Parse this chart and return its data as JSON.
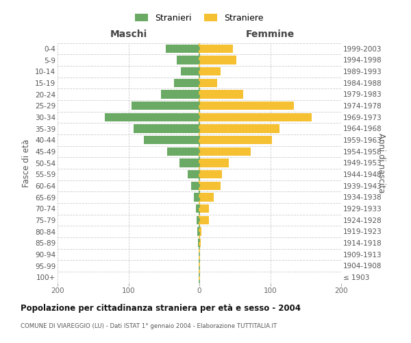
{
  "age_groups": [
    "100+",
    "95-99",
    "90-94",
    "85-89",
    "80-84",
    "75-79",
    "70-74",
    "65-69",
    "60-64",
    "55-59",
    "50-54",
    "45-49",
    "40-44",
    "35-39",
    "30-34",
    "25-29",
    "20-24",
    "15-19",
    "10-14",
    "5-9",
    "0-4"
  ],
  "birth_years": [
    "≤ 1903",
    "1904-1908",
    "1909-1913",
    "1914-1918",
    "1919-1923",
    "1924-1928",
    "1929-1933",
    "1934-1938",
    "1939-1943",
    "1944-1948",
    "1949-1953",
    "1954-1958",
    "1959-1963",
    "1964-1968",
    "1969-1973",
    "1974-1978",
    "1979-1983",
    "1984-1988",
    "1989-1993",
    "1994-1998",
    "1999-2003"
  ],
  "maschi": [
    0,
    0,
    0,
    2,
    3,
    4,
    5,
    8,
    12,
    16,
    28,
    45,
    78,
    93,
    133,
    96,
    54,
    36,
    26,
    32,
    47
  ],
  "femmine": [
    0,
    0,
    0,
    2,
    3,
    14,
    14,
    20,
    30,
    32,
    42,
    72,
    102,
    113,
    158,
    133,
    62,
    25,
    30,
    52,
    47
  ],
  "maschi_color": "#6aaa64",
  "femmine_color": "#f5c031",
  "grid_color": "#cccccc",
  "title": "Popolazione per cittadinanza straniera per età e sesso - 2004",
  "subtitle": "COMUNE DI VIAREGGIO (LU) - Dati ISTAT 1° gennaio 2004 - Elaborazione TUTTITALIA.IT",
  "ylabel_left": "Fasce di età",
  "ylabel_right": "Anni di nascita",
  "header_left": "Maschi",
  "header_right": "Femmine",
  "legend_stranieri": "Stranieri",
  "legend_straniere": "Straniere",
  "xlim": 200
}
